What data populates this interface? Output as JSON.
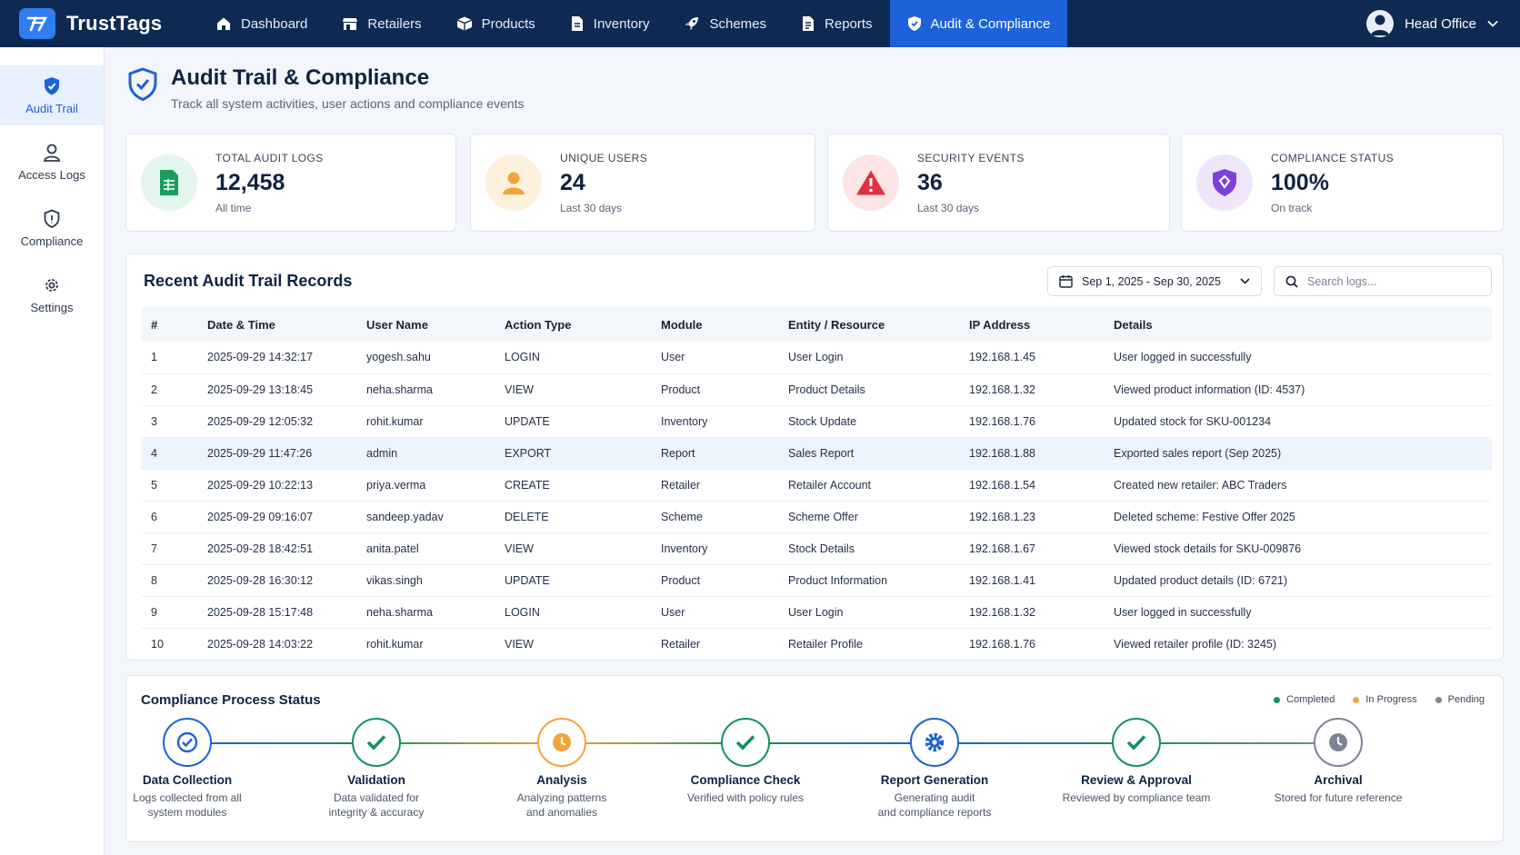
{
  "app": {
    "name": "TrustTags",
    "logo_icon": "trusttags-logo-icon"
  },
  "nav": [
    {
      "label": "Dashboard",
      "icon": "home-icon"
    },
    {
      "label": "Retailers",
      "icon": "store-icon"
    },
    {
      "label": "Products",
      "icon": "box-icon"
    },
    {
      "label": "Inventory",
      "icon": "document-icon"
    },
    {
      "label": "Schemes",
      "icon": "rocket-icon"
    },
    {
      "label": "Reports",
      "icon": "report-icon"
    },
    {
      "label": "Audit & Compliance",
      "icon": "shield-icon",
      "active": true
    }
  ],
  "user": {
    "name": "Head Office",
    "icon": "user-avatar-icon"
  },
  "sidebar": [
    {
      "label": "Audit Trail",
      "icon": "shield-icon",
      "active": true
    },
    {
      "label": "Access Logs",
      "icon": "user-icon"
    },
    {
      "label": "Compliance",
      "icon": "shield-outline-icon"
    },
    {
      "label": "Settings",
      "icon": "gear-icon"
    }
  ],
  "header": {
    "title": "Audit Trail & Compliance",
    "subtitle": "Track all system activities, user actions and compliance events"
  },
  "stats": [
    {
      "label": "TOTAL AUDIT LOGS",
      "value": "12,458",
      "note": "All time",
      "icon": "spreadsheet-icon",
      "color": "#1a9e5c",
      "bg": "#e3f5ec"
    },
    {
      "label": "UNIQUE USERS",
      "value": "24",
      "note": "Last 30 days",
      "icon": "user-icon",
      "color": "#f2a33a",
      "bg": "#fdf0dd"
    },
    {
      "label": "SECURITY EVENTS",
      "value": "36",
      "note": "Last 30 days",
      "icon": "warning-icon",
      "color": "#e0313b",
      "bg": "#fde4e5"
    },
    {
      "label": "COMPLIANCE STATUS",
      "value": "100%",
      "note": "On track",
      "icon": "shield-check-icon",
      "color": "#7b3fe0",
      "bg": "#efe6fc"
    }
  ],
  "records": {
    "title": "Recent Audit Trail Records",
    "date_range": "Sep 1, 2025 - Sep 30, 2025",
    "search_placeholder": "Search logs...",
    "columns": [
      "#",
      "Date & Time",
      "User Name",
      "Action Type",
      "Module",
      "Entity / Resource",
      "IP Address",
      "Details"
    ],
    "rows": [
      [
        "1",
        "2025-09-29 14:32:17",
        "yogesh.sahu",
        "LOGIN",
        "User",
        "User Login",
        "192.168.1.45",
        "User logged in successfully"
      ],
      [
        "2",
        "2025-09-29 13:18:45",
        "neha.sharma",
        "VIEW",
        "Product",
        "Product Details",
        "192.168.1.32",
        "Viewed product information (ID: 4537)"
      ],
      [
        "3",
        "2025-09-29 12:05:32",
        "rohit.kumar",
        "UPDATE",
        "Inventory",
        "Stock Update",
        "192.168.1.76",
        "Updated stock for SKU-001234"
      ],
      [
        "4",
        "2025-09-29 11:47:26",
        "admin",
        "EXPORT",
        "Report",
        "Sales Report",
        "192.168.1.88",
        "Exported sales report (Sep 2025)"
      ],
      [
        "5",
        "2025-09-29 10:22:13",
        "priya.verma",
        "CREATE",
        "Retailer",
        "Retailer Account",
        "192.168.1.54",
        "Created new retailer: ABC Traders"
      ],
      [
        "6",
        "2025-09-29 09:16:07",
        "sandeep.yadav",
        "DELETE",
        "Scheme",
        "Scheme Offer",
        "192.168.1.23",
        "Deleted scheme: Festive Offer 2025"
      ],
      [
        "7",
        "2025-09-28 18:42:51",
        "anita.patel",
        "VIEW",
        "Inventory",
        "Stock Details",
        "192.168.1.67",
        "Viewed stock details for SKU-009876"
      ],
      [
        "8",
        "2025-09-28 16:30:12",
        "vikas.singh",
        "UPDATE",
        "Product",
        "Product Information",
        "192.168.1.41",
        "Updated product details (ID: 6721)"
      ],
      [
        "9",
        "2025-09-28 15:17:48",
        "neha.sharma",
        "LOGIN",
        "User",
        "User Login",
        "192.168.1.32",
        "User logged in successfully"
      ],
      [
        "10",
        "2025-09-28 14:03:22",
        "rohit.kumar",
        "VIEW",
        "Retailer",
        "Retailer Profile",
        "192.168.1.76",
        "Viewed retailer profile (ID: 3245)"
      ]
    ],
    "highlighted_row": 3
  },
  "process": {
    "title": "Compliance Process Status",
    "legend": [
      {
        "label": "Completed",
        "color": "#17915a"
      },
      {
        "label": "In Progress",
        "color": "#f2a33a"
      },
      {
        "label": "Pending",
        "color": "#7a8496"
      }
    ],
    "steps": [
      {
        "name": "Data Collection",
        "desc": [
          "Logs collected from all",
          "system modules"
        ],
        "icon": "check-circle-icon",
        "color": "#1d62d8"
      },
      {
        "name": "Validation",
        "desc": [
          "Data validated for",
          "integrity & accuracy"
        ],
        "icon": "check-icon",
        "color": "#17915a"
      },
      {
        "name": "Analysis",
        "desc": [
          "Analyzing patterns",
          "and anomalies"
        ],
        "icon": "clock-icon",
        "color": "#f2a33a"
      },
      {
        "name": "Compliance Check",
        "desc": [
          "Verified with policy rules"
        ],
        "icon": "check-icon",
        "color": "#17915a"
      },
      {
        "name": "Report Generation",
        "desc": [
          "Generating audit",
          "and compliance reports"
        ],
        "icon": "gear-icon",
        "color": "#1d62d8"
      },
      {
        "name": "Review & Approval",
        "desc": [
          "Reviewed by compliance team"
        ],
        "icon": "check-icon",
        "color": "#17915a"
      },
      {
        "name": "Archival",
        "desc": [
          "Stored for future reference"
        ],
        "icon": "clock-icon",
        "color": "#7a8496"
      }
    ]
  }
}
